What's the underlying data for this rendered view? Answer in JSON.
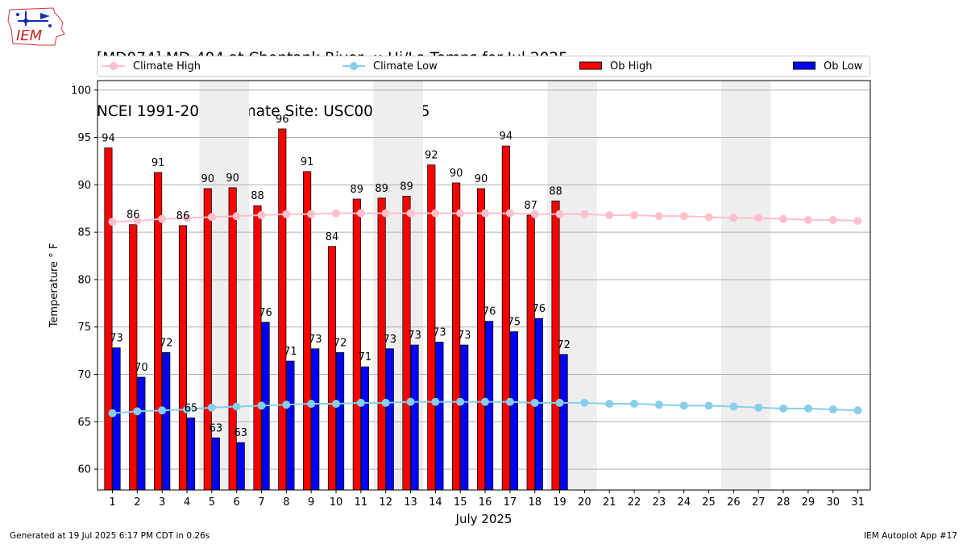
{
  "header": {
    "logo_text": "IEM",
    "title_line1": "[MD074] MD-404 at Choptank River  :: Hi/Lo Temps for Jul 2025",
    "title_line2": "NCEI 1991-2020 Climate Site: USC00073595"
  },
  "legend": {
    "climate_high": "Climate High",
    "climate_low": "Climate Low",
    "ob_high": "Ob High",
    "ob_low": "Ob Low"
  },
  "footer": {
    "generated": "Generated at 19 Jul 2025 6:17 PM CDT in 0.26s",
    "app": "IEM Autoplot App #17"
  },
  "colors": {
    "ob_high": "#ff0000",
    "ob_low": "#0000ff",
    "climate_high": "#ffc0cb",
    "climate_low": "#87ceeb",
    "weekend_shade": "#eeeeee",
    "grid": "#b0b0b0"
  },
  "chart_data": {
    "type": "bar",
    "title": "[MD074] MD-404 at Choptank River  :: Hi/Lo Temps for Jul 2025",
    "xlabel": "July 2025",
    "ylabel": "Temperature ° F",
    "ylim": [
      57.8,
      101
    ],
    "yticks": [
      60,
      65,
      70,
      75,
      80,
      85,
      90,
      95,
      100
    ],
    "grid": true,
    "legend_position": "top",
    "days": [
      1,
      2,
      3,
      4,
      5,
      6,
      7,
      8,
      9,
      10,
      11,
      12,
      13,
      14,
      15,
      16,
      17,
      18,
      19,
      20,
      21,
      22,
      23,
      24,
      25,
      26,
      27,
      28,
      29,
      30,
      31
    ],
    "weekend_shading": [
      [
        5,
        6
      ],
      [
        12,
        13
      ],
      [
        19,
        20
      ],
      [
        26,
        27
      ]
    ],
    "series": [
      {
        "name": "Ob High",
        "kind": "bar",
        "values": [
          94,
          86,
          91,
          86,
          90,
          90,
          88,
          96,
          91,
          84,
          89,
          89,
          89,
          92,
          90,
          90,
          94,
          87,
          88
        ],
        "display_values": [
          93.9,
          85.8,
          91.3,
          85.7,
          89.6,
          89.7,
          87.8,
          95.9,
          91.4,
          83.5,
          88.5,
          88.6,
          88.8,
          92.1,
          90.2,
          89.6,
          94.1,
          86.8,
          88.3
        ]
      },
      {
        "name": "Ob Low",
        "kind": "bar",
        "values": [
          73,
          70,
          72,
          65,
          63,
          63,
          76,
          71,
          73,
          72,
          71,
          73,
          73,
          73,
          73,
          76,
          75,
          76,
          72
        ],
        "display_values": [
          72.8,
          69.7,
          72.3,
          65.4,
          63.3,
          62.8,
          75.5,
          71.4,
          72.7,
          72.3,
          70.8,
          72.7,
          73.1,
          73.4,
          73.1,
          75.6,
          74.5,
          75.9,
          72.1
        ]
      },
      {
        "name": "Climate High",
        "kind": "line",
        "values": [
          86.1,
          86.2,
          86.4,
          86.5,
          86.6,
          86.7,
          86.8,
          86.9,
          86.9,
          87.0,
          87.0,
          87.0,
          87.0,
          87.0,
          87.0,
          87.0,
          87.0,
          86.9,
          86.9,
          86.9,
          86.8,
          86.8,
          86.7,
          86.7,
          86.6,
          86.5,
          86.5,
          86.4,
          86.3,
          86.3,
          86.2
        ]
      },
      {
        "name": "Climate Low",
        "kind": "line",
        "values": [
          65.9,
          66.1,
          66.2,
          66.3,
          66.5,
          66.6,
          66.7,
          66.8,
          66.9,
          66.9,
          67.0,
          67.0,
          67.1,
          67.1,
          67.1,
          67.1,
          67.1,
          67.0,
          67.0,
          67.0,
          66.9,
          66.9,
          66.8,
          66.7,
          66.7,
          66.6,
          66.5,
          66.4,
          66.4,
          66.3,
          66.2
        ]
      }
    ]
  }
}
